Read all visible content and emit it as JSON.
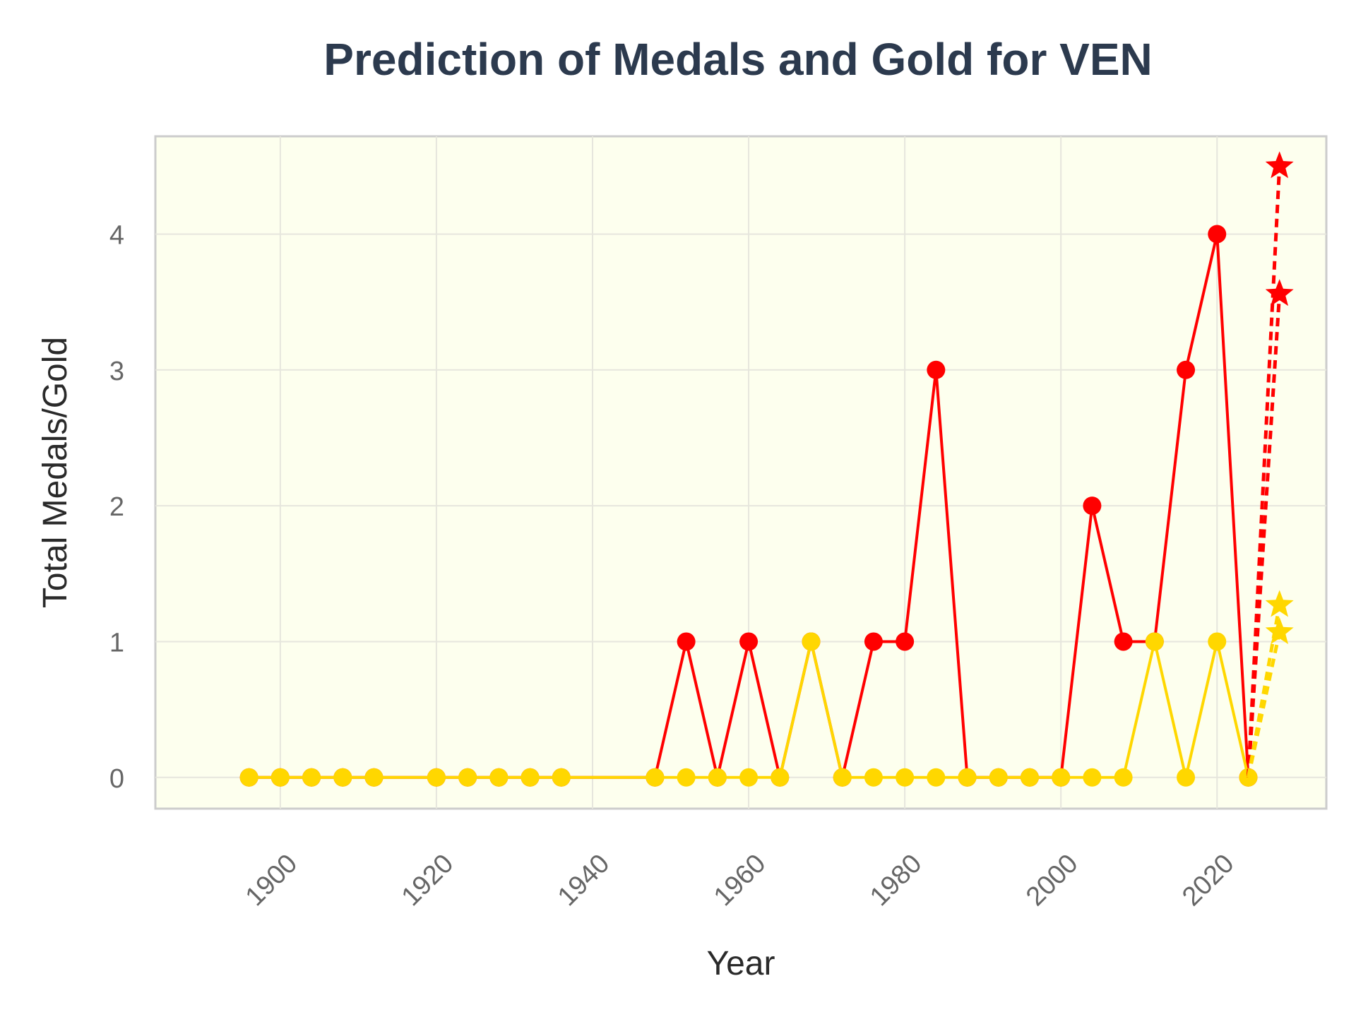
{
  "chart_data": {
    "type": "line",
    "title": "Prediction of Medals and Gold for VEN",
    "xlabel": "Year",
    "ylabel": "Total Medals/Gold",
    "xlim": [
      1884,
      2034
    ],
    "ylim": [
      -0.23,
      4.72
    ],
    "xticks": [
      1900,
      1920,
      1940,
      1960,
      1980,
      2000,
      2020
    ],
    "yticks": [
      0,
      1,
      2,
      3,
      4
    ],
    "grid": true,
    "legend": "none",
    "background": "#fdffee",
    "series": [
      {
        "color": "#ff0000",
        "style": "solid-circle",
        "points": [
          [
            1896,
            0
          ],
          [
            1900,
            0
          ],
          [
            1904,
            0
          ],
          [
            1908,
            0
          ],
          [
            1912,
            0
          ],
          [
            1920,
            0
          ],
          [
            1924,
            0
          ],
          [
            1928,
            0
          ],
          [
            1932,
            0
          ],
          [
            1936,
            0
          ],
          [
            1948,
            0
          ],
          [
            1952,
            1
          ],
          [
            1956,
            0
          ],
          [
            1960,
            1
          ],
          [
            1964,
            0
          ],
          [
            1968,
            1
          ],
          [
            1972,
            0
          ],
          [
            1976,
            1
          ],
          [
            1980,
            1
          ],
          [
            1984,
            3
          ],
          [
            1988,
            0
          ],
          [
            1992,
            0
          ],
          [
            1996,
            0
          ],
          [
            2000,
            0
          ],
          [
            2004,
            2
          ],
          [
            2008,
            1
          ],
          [
            2012,
            1
          ],
          [
            2016,
            3
          ],
          [
            2020,
            4
          ],
          [
            2024,
            0
          ]
        ]
      },
      {
        "color": "#ffd700",
        "style": "solid-circle",
        "points": [
          [
            1896,
            0
          ],
          [
            1900,
            0
          ],
          [
            1904,
            0
          ],
          [
            1908,
            0
          ],
          [
            1912,
            0
          ],
          [
            1920,
            0
          ],
          [
            1924,
            0
          ],
          [
            1928,
            0
          ],
          [
            1932,
            0
          ],
          [
            1936,
            0
          ],
          [
            1948,
            0
          ],
          [
            1952,
            0
          ],
          [
            1956,
            0
          ],
          [
            1960,
            0
          ],
          [
            1964,
            0
          ],
          [
            1968,
            1
          ],
          [
            1972,
            0
          ],
          [
            1976,
            0
          ],
          [
            1980,
            0
          ],
          [
            1984,
            0
          ],
          [
            1988,
            0
          ],
          [
            1992,
            0
          ],
          [
            1996,
            0
          ],
          [
            2000,
            0
          ],
          [
            2004,
            0
          ],
          [
            2008,
            0
          ],
          [
            2012,
            1
          ],
          [
            2016,
            0
          ],
          [
            2020,
            1
          ],
          [
            2024,
            0
          ]
        ]
      },
      {
        "color": "#ff0000",
        "style": "dashed-star",
        "points": [
          [
            2024,
            0
          ],
          [
            2028,
            4.5
          ]
        ]
      },
      {
        "color": "#ff0000",
        "style": "dashed-star",
        "points": [
          [
            2024,
            0
          ],
          [
            2028,
            3.56
          ]
        ]
      },
      {
        "color": "#ffd700",
        "style": "dashed-star",
        "points": [
          [
            2024,
            0
          ],
          [
            2028,
            1.27
          ]
        ]
      },
      {
        "color": "#ffd700",
        "style": "dashed-star",
        "points": [
          [
            2024,
            0
          ],
          [
            2028,
            1.07
          ]
        ]
      }
    ]
  }
}
